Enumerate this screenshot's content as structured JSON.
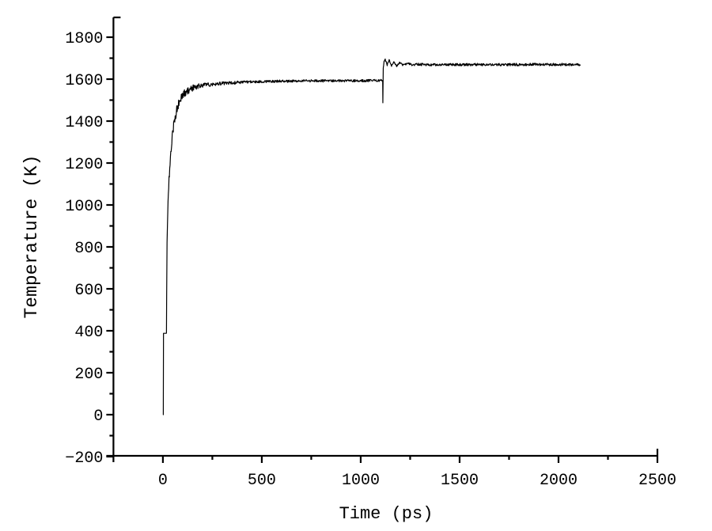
{
  "chart_data": {
    "type": "line",
    "title": "",
    "xlabel": "Time (ps)",
    "ylabel": "Temperature (K)",
    "xlim": [
      -250,
      2500
    ],
    "ylim": [
      -200,
      1900
    ],
    "grid": false,
    "legend": null,
    "x_major_ticks": [
      0,
      500,
      1000,
      1500,
      2000,
      2500
    ],
    "x_minor_ticks": [
      250,
      750,
      1250,
      1750,
      2250
    ],
    "y_major_ticks": [
      -200,
      0,
      200,
      400,
      600,
      800,
      1000,
      1200,
      1400,
      1600,
      1800
    ],
    "y_minor_ticks": [
      -100,
      100,
      300,
      500,
      700,
      900,
      1100,
      1300,
      1500,
      1700
    ],
    "style": {
      "background": "#ffffff",
      "axis_color": "#000000",
      "line_color": "#000000",
      "text_color": "#000000"
    },
    "series": [
      {
        "name": "temperature",
        "units_x": "ps",
        "units_y": "K",
        "anchors": [
          [
            2,
            0
          ],
          [
            3,
            388
          ],
          [
            18,
            388
          ],
          [
            19,
            560
          ],
          [
            21,
            830
          ],
          [
            23,
            905
          ],
          [
            26,
            1010
          ],
          [
            31,
            1120
          ],
          [
            38,
            1230
          ],
          [
            47,
            1320
          ],
          [
            58,
            1400
          ],
          [
            70,
            1455
          ],
          [
            85,
            1495
          ],
          [
            103,
            1525
          ],
          [
            125,
            1545
          ],
          [
            155,
            1560
          ],
          [
            195,
            1570
          ],
          [
            250,
            1576
          ],
          [
            330,
            1582
          ],
          [
            440,
            1587
          ],
          [
            600,
            1590
          ],
          [
            820,
            1592
          ],
          [
            1111,
            1593
          ],
          [
            1112,
            1488
          ],
          [
            1114,
            1652
          ],
          [
            1118,
            1686
          ],
          [
            1124,
            1692
          ],
          [
            1134,
            1668
          ],
          [
            1144,
            1690
          ],
          [
            1156,
            1664
          ],
          [
            1168,
            1684
          ],
          [
            1182,
            1663
          ],
          [
            1198,
            1679
          ],
          [
            1216,
            1665
          ],
          [
            1238,
            1676
          ],
          [
            1262,
            1667
          ],
          [
            1290,
            1672
          ],
          [
            1320,
            1669
          ],
          [
            2110,
            1670
          ]
        ],
        "noise_envelope": [
          [
            0,
            0
          ],
          [
            17,
            0
          ],
          [
            19,
            10
          ],
          [
            28,
            18
          ],
          [
            40,
            24
          ],
          [
            90,
            22
          ],
          [
            140,
            15
          ],
          [
            200,
            11
          ],
          [
            300,
            8
          ],
          [
            450,
            6
          ],
          [
            1108,
            6
          ],
          [
            1112,
            2
          ],
          [
            1120,
            4
          ],
          [
            1250,
            5
          ],
          [
            1290,
            6
          ],
          [
            2110,
            6
          ]
        ]
      }
    ]
  }
}
